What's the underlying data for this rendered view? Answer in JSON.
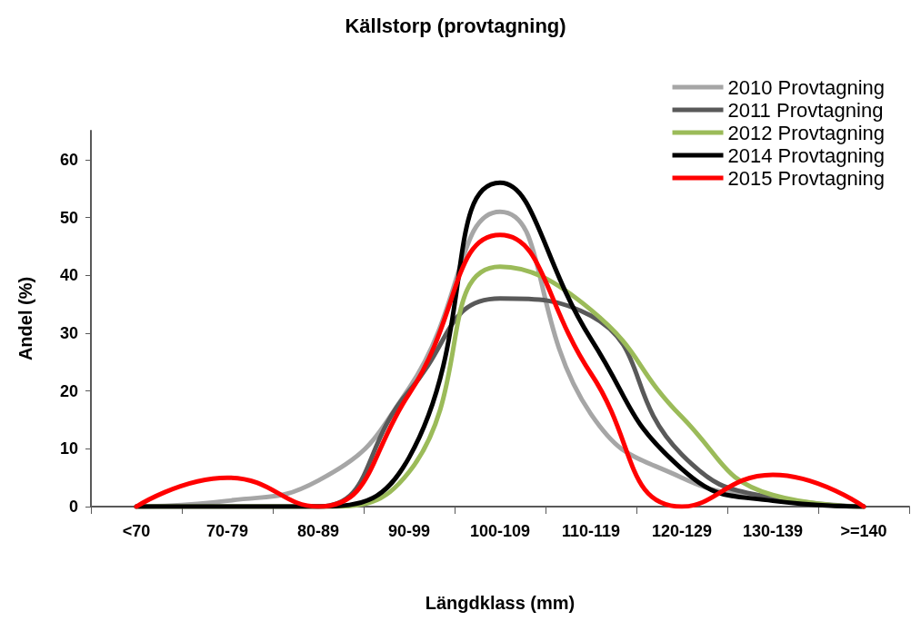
{
  "chart_data": {
    "type": "line",
    "title": "Källstorp (provtagning)",
    "xlabel": "Längdklass (mm)",
    "ylabel": "Andel (%)",
    "categories": [
      "<70",
      "70-79",
      "80-89",
      "90-99",
      "100-109",
      "110-119",
      "120-129",
      "130-139",
      ">=140"
    ],
    "series": [
      {
        "name": "2010 Provtagning",
        "color": "#a6a6a6",
        "values": [
          0,
          1,
          4.5,
          20.5,
          51,
          16,
          5,
          1.5,
          0
        ]
      },
      {
        "name": "2011 Provtagning",
        "color": "#595959",
        "values": [
          0,
          0,
          0,
          20,
          36,
          33,
          9,
          1.5,
          0
        ]
      },
      {
        "name": "2012 Provtagning",
        "color": "#9bbb59",
        "values": [
          0,
          0,
          0,
          6,
          41.5,
          34,
          15.5,
          2,
          0
        ]
      },
      {
        "name": "2014 Provtagning",
        "color": "#000000",
        "values": [
          0,
          0,
          0,
          8.5,
          56,
          29,
          6.5,
          1,
          0
        ]
      },
      {
        "name": "2015 Provtagning",
        "color": "#ff0000",
        "values": [
          0,
          5,
          0,
          19.5,
          47,
          23,
          0,
          5.5,
          0
        ]
      }
    ],
    "ylim": [
      0,
      65
    ],
    "yticks": [
      0,
      10,
      20,
      30,
      40,
      50,
      60
    ],
    "grid": false,
    "legend": "top right",
    "marker": "none",
    "line_style": "solid"
  }
}
